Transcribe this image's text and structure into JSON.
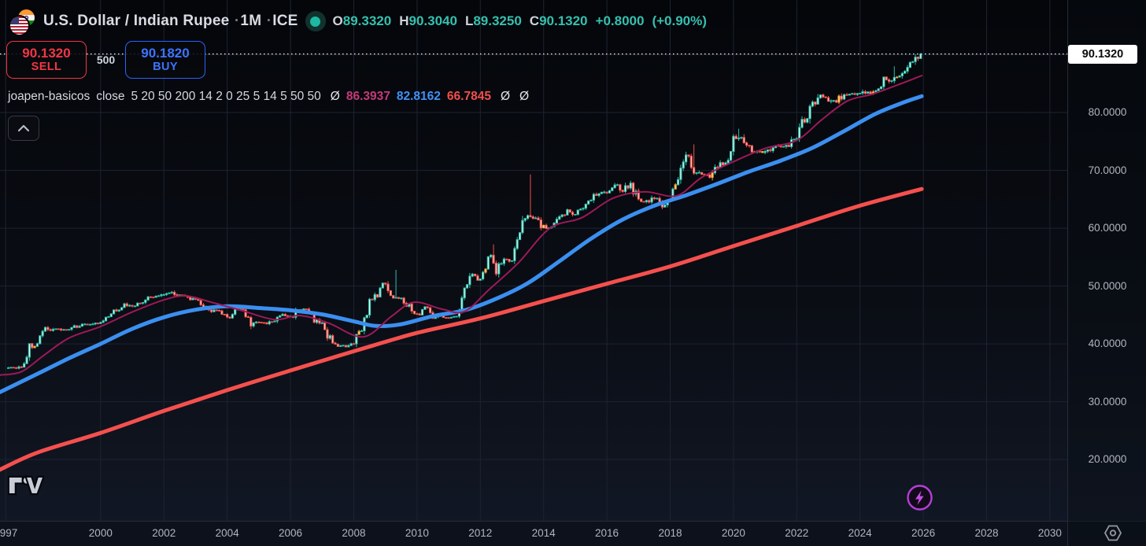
{
  "header": {
    "flag_icon": "usd-inr-flag-pair",
    "title": "U.S. Dollar / Indian Rupee",
    "dot": "·",
    "timeframe": "1M",
    "exchange": "ICE",
    "market_status_icon": "market-open-dot",
    "ohlc": {
      "o_label": "O",
      "o": "89.3320",
      "h_label": "H",
      "h": "90.3040",
      "l_label": "L",
      "l": "89.3250",
      "c_label": "C",
      "c": "90.1320",
      "change": "+0.8000",
      "change_pct": "(+0.90%)"
    }
  },
  "trade": {
    "sell_price": "90.1320",
    "sell_label": "SELL",
    "spread": "500",
    "buy_price": "90.1820",
    "buy_label": "BUY"
  },
  "indicator": {
    "name": "joapen-basicos",
    "source": "close",
    "params": "5 20 50 200 14 2 0 25 5 14 5 50 50",
    "phi": "Ø",
    "ma_fast": "86.3937",
    "ma_mid": "82.8162",
    "ma_slow": "66.7845",
    "phi2": "Ø",
    "phi3": "Ø"
  },
  "price_axis": {
    "current_price": "90.1320"
  },
  "colors": {
    "up_candle": "#2ebda9",
    "up_fill": "#d9f6f0",
    "down_candle": "#f0524c",
    "down_fill": "#f8c3c0",
    "accent_candle": "#f59e2d",
    "accent_fill": "#fcd9a0",
    "sell_red": "#f23645",
    "buy_blue": "#2962ff",
    "ohlc_value_teal": "#36c0ae",
    "ma_fast_line": "#9c1a58",
    "ma_mid_line": "#3b8ff0",
    "ma_slow_line": "#f5504e",
    "grid": "#1d2330",
    "axis_text": "#b2b5be",
    "price_line": "#e8e8e8",
    "price_tag_bg": "#ffffff",
    "flash_purple": "#b43fd6"
  },
  "chart_data": {
    "type": "candlestick",
    "title": "USD/INR monthly candles with moving averages",
    "x_axis": {
      "unit": "year",
      "visible_range": [
        1996.82,
        2030.55
      ],
      "ticks": [
        1997,
        2000,
        2002,
        2004,
        2006,
        2008,
        2010,
        2012,
        2014,
        2016,
        2018,
        2020,
        2022,
        2024,
        2026,
        2028,
        2030
      ]
    },
    "y_axis": {
      "unit": "INR per USD",
      "visible_range": [
        9.4,
        99.46
      ],
      "ticks": [
        {
          "value": 80,
          "label": "80.0000"
        },
        {
          "value": 70,
          "label": "70.0000"
        },
        {
          "value": 60,
          "label": "60.0000"
        },
        {
          "value": 50,
          "label": "50.0000"
        },
        {
          "value": 40,
          "label": "40.0000"
        },
        {
          "value": 30,
          "label": "30.0000"
        },
        {
          "value": 20,
          "label": "20.0000"
        }
      ]
    },
    "grid": true,
    "price_line": {
      "value": 90.132,
      "style": "dotted"
    },
    "candles": {
      "timeframe": "1M",
      "start_year": 1997,
      "first_open": 35.7,
      "quarterly_closes": [
        35.8,
        35.85,
        36.0,
        39.3,
        39.9,
        42.3,
        42.6,
        42.5,
        42.4,
        43.1,
        43.4,
        43.5,
        43.6,
        44.7,
        45.9,
        46.7,
        46.6,
        47.0,
        47.9,
        48.2,
        48.7,
        48.9,
        48.4,
        48.0,
        47.5,
        46.4,
        45.8,
        45.6,
        44.3,
        46.0,
        45.9,
        43.6,
        43.7,
        43.5,
        44.0,
        45.1,
        44.6,
        46.0,
        45.9,
        44.2,
        43.5,
        40.7,
        39.8,
        39.4,
        40.0,
        43.0,
        46.9,
        48.6,
        50.7,
        47.9,
        48.0,
        46.5,
        44.9,
        46.5,
        44.9,
        44.7,
        44.6,
        44.7,
        49.0,
        53.1,
        50.9,
        55.6,
        52.9,
        54.8,
        54.3,
        59.5,
        62.6,
        61.8,
        60.0,
        60.1,
        61.6,
        63.0,
        62.5,
        63.6,
        65.5,
        66.2,
        66.3,
        67.5,
        66.6,
        67.9,
        64.8,
        64.6,
        65.3,
        63.9,
        65.0,
        68.5,
        72.5,
        69.8,
        69.2,
        69.0,
        70.9,
        71.3,
        75.1,
        75.5,
        73.8,
        73.1,
        73.1,
        74.3,
        74.2,
        74.3,
        75.8,
        78.9,
        81.3,
        82.7,
        82.2,
        82.0,
        83.1,
        83.2,
        83.4,
        83.4,
        83.8,
        85.6,
        85.5,
        86.7,
        88.2,
        89.33
      ],
      "last_candle": {
        "open": 89.332,
        "high": 90.304,
        "low": 89.325,
        "close": 90.132
      },
      "wick_spikes": [
        [
          2009.35,
          52.8
        ],
        [
          2012.45,
          57.2
        ],
        [
          2013.6,
          69.3
        ],
        [
          2018.75,
          74.5
        ],
        [
          2020.2,
          77.2
        ],
        [
          2025.1,
          88.0
        ]
      ],
      "accent_candle_years": [
        1997.9,
        2006.3,
        2008.15,
        2012.2,
        2014.0,
        2018.2,
        2019.3,
        2020.65,
        2020.9,
        2023.3,
        2024.4,
        2025.2
      ]
    },
    "ma_lines": [
      {
        "name": "ma-fast",
        "current_value": 86.3937,
        "width": 2,
        "points": [
          [
            1996.8,
            34.6
          ],
          [
            1997.5,
            35.2
          ],
          [
            1998.2,
            38.0
          ],
          [
            1999,
            41.0
          ],
          [
            2000,
            43.0
          ],
          [
            2001,
            45.5
          ],
          [
            2002,
            47.6
          ],
          [
            2002.7,
            48.3
          ],
          [
            2003.5,
            47.2
          ],
          [
            2004.5,
            45.7
          ],
          [
            2005.5,
            44.2
          ],
          [
            2006.3,
            44.9
          ],
          [
            2007.2,
            43.6
          ],
          [
            2008.3,
            41.2
          ],
          [
            2009.2,
            44.8
          ],
          [
            2009.9,
            47.2
          ],
          [
            2010.8,
            46.0
          ],
          [
            2011.5,
            45.6
          ],
          [
            2012.3,
            49.5
          ],
          [
            2013.2,
            54.0
          ],
          [
            2014.2,
            60.0
          ],
          [
            2015.2,
            61.8
          ],
          [
            2016.2,
            65.2
          ],
          [
            2017.2,
            66.3
          ],
          [
            2018.2,
            65.6
          ],
          [
            2019,
            68.8
          ],
          [
            2020,
            71.5
          ],
          [
            2021,
            73.8
          ],
          [
            2022,
            75.2
          ],
          [
            2022.8,
            78.8
          ],
          [
            2023.6,
            82.0
          ],
          [
            2024.4,
            83.2
          ],
          [
            2025.2,
            84.8
          ],
          [
            2025.95,
            86.39
          ]
        ]
      },
      {
        "name": "ma-mid",
        "current_value": 82.8162,
        "width": 5,
        "points": [
          [
            1996.8,
            31.6
          ],
          [
            1998,
            34.8
          ],
          [
            1999,
            37.5
          ],
          [
            2000,
            40.0
          ],
          [
            2001,
            42.6
          ],
          [
            2002,
            44.6
          ],
          [
            2003,
            45.9
          ],
          [
            2004,
            46.5
          ],
          [
            2005,
            46.2
          ],
          [
            2006,
            45.8
          ],
          [
            2007,
            45.1
          ],
          [
            2008,
            43.9
          ],
          [
            2008.7,
            43.1
          ],
          [
            2009.5,
            43.4
          ],
          [
            2010.5,
            44.8
          ],
          [
            2011.5,
            45.8
          ],
          [
            2012.5,
            47.8
          ],
          [
            2013.5,
            50.5
          ],
          [
            2014.5,
            54.3
          ],
          [
            2015.5,
            58.2
          ],
          [
            2016.5,
            61.5
          ],
          [
            2017.5,
            63.9
          ],
          [
            2018.5,
            65.7
          ],
          [
            2019.5,
            67.7
          ],
          [
            2020.5,
            69.8
          ],
          [
            2021.5,
            71.7
          ],
          [
            2022.5,
            73.9
          ],
          [
            2023.5,
            76.8
          ],
          [
            2024.5,
            79.8
          ],
          [
            2025.4,
            81.8
          ],
          [
            2025.95,
            82.82
          ]
        ]
      },
      {
        "name": "ma-slow",
        "current_value": 66.7845,
        "width": 5,
        "points": [
          [
            1996.8,
            18.2
          ],
          [
            1998,
            21.2
          ],
          [
            2000,
            24.6
          ],
          [
            2002,
            28.4
          ],
          [
            2004,
            32.0
          ],
          [
            2006,
            35.4
          ],
          [
            2007.5,
            37.9
          ],
          [
            2008.6,
            39.7
          ],
          [
            2010,
            41.9
          ],
          [
            2012,
            44.4
          ],
          [
            2014,
            47.4
          ],
          [
            2016,
            50.4
          ],
          [
            2018,
            53.4
          ],
          [
            2020,
            56.9
          ],
          [
            2022,
            60.4
          ],
          [
            2024,
            63.9
          ],
          [
            2025.95,
            66.78
          ]
        ]
      }
    ]
  }
}
